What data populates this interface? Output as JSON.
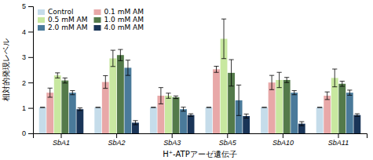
{
  "chart_data": {
    "type": "bar",
    "categories": [
      "SbA1",
      "SbA2",
      "SbA3",
      "SbA5",
      "SbA10",
      "SbA11"
    ],
    "series": [
      {
        "name": "Control",
        "color": "#c5dcea",
        "values": [
          1.02,
          1.02,
          1.02,
          1.02,
          1.02,
          1.02
        ],
        "errors": [
          0.0,
          0.0,
          0.0,
          0.0,
          0.0,
          0.0
        ]
      },
      {
        "name": "0.1 mM AM",
        "color": "#e8a8a8",
        "values": [
          1.6,
          2.02,
          1.48,
          2.52,
          2.0,
          1.48
        ],
        "errors": [
          0.18,
          0.25,
          0.32,
          0.12,
          0.28,
          0.15
        ]
      },
      {
        "name": "0.5 mM AM",
        "color": "#c8e8a0",
        "values": [
          2.28,
          2.95,
          1.48,
          3.72,
          2.1,
          2.18
        ],
        "errors": [
          0.1,
          0.32,
          0.1,
          0.78,
          0.3,
          0.35
        ]
      },
      {
        "name": "1.0 mM AM",
        "color": "#547a4a",
        "values": [
          2.08,
          3.08,
          1.42,
          2.38,
          2.1,
          1.95
        ],
        "errors": [
          0.1,
          0.22,
          0.05,
          0.52,
          0.1,
          0.1
        ]
      },
      {
        "name": "2.0 mM AM",
        "color": "#4a7a9a",
        "values": [
          1.6,
          2.58,
          0.95,
          1.3,
          1.6,
          1.6
        ],
        "errors": [
          0.08,
          0.3,
          0.08,
          0.6,
          0.08,
          0.1
        ]
      },
      {
        "name": "4.0 mM AM",
        "color": "#1a3558",
        "values": [
          0.95,
          0.42,
          0.72,
          0.68,
          0.38,
          0.72
        ],
        "errors": [
          0.05,
          0.08,
          0.05,
          0.08,
          0.08,
          0.05
        ]
      }
    ],
    "xlabel": "H⁺-ATPアーゼ遺伝子",
    "ylabel": "相対的発現レベル",
    "ylim": [
      0,
      5
    ],
    "yticks": [
      0,
      1,
      2,
      3,
      4,
      5
    ],
    "legend": "upper left"
  }
}
